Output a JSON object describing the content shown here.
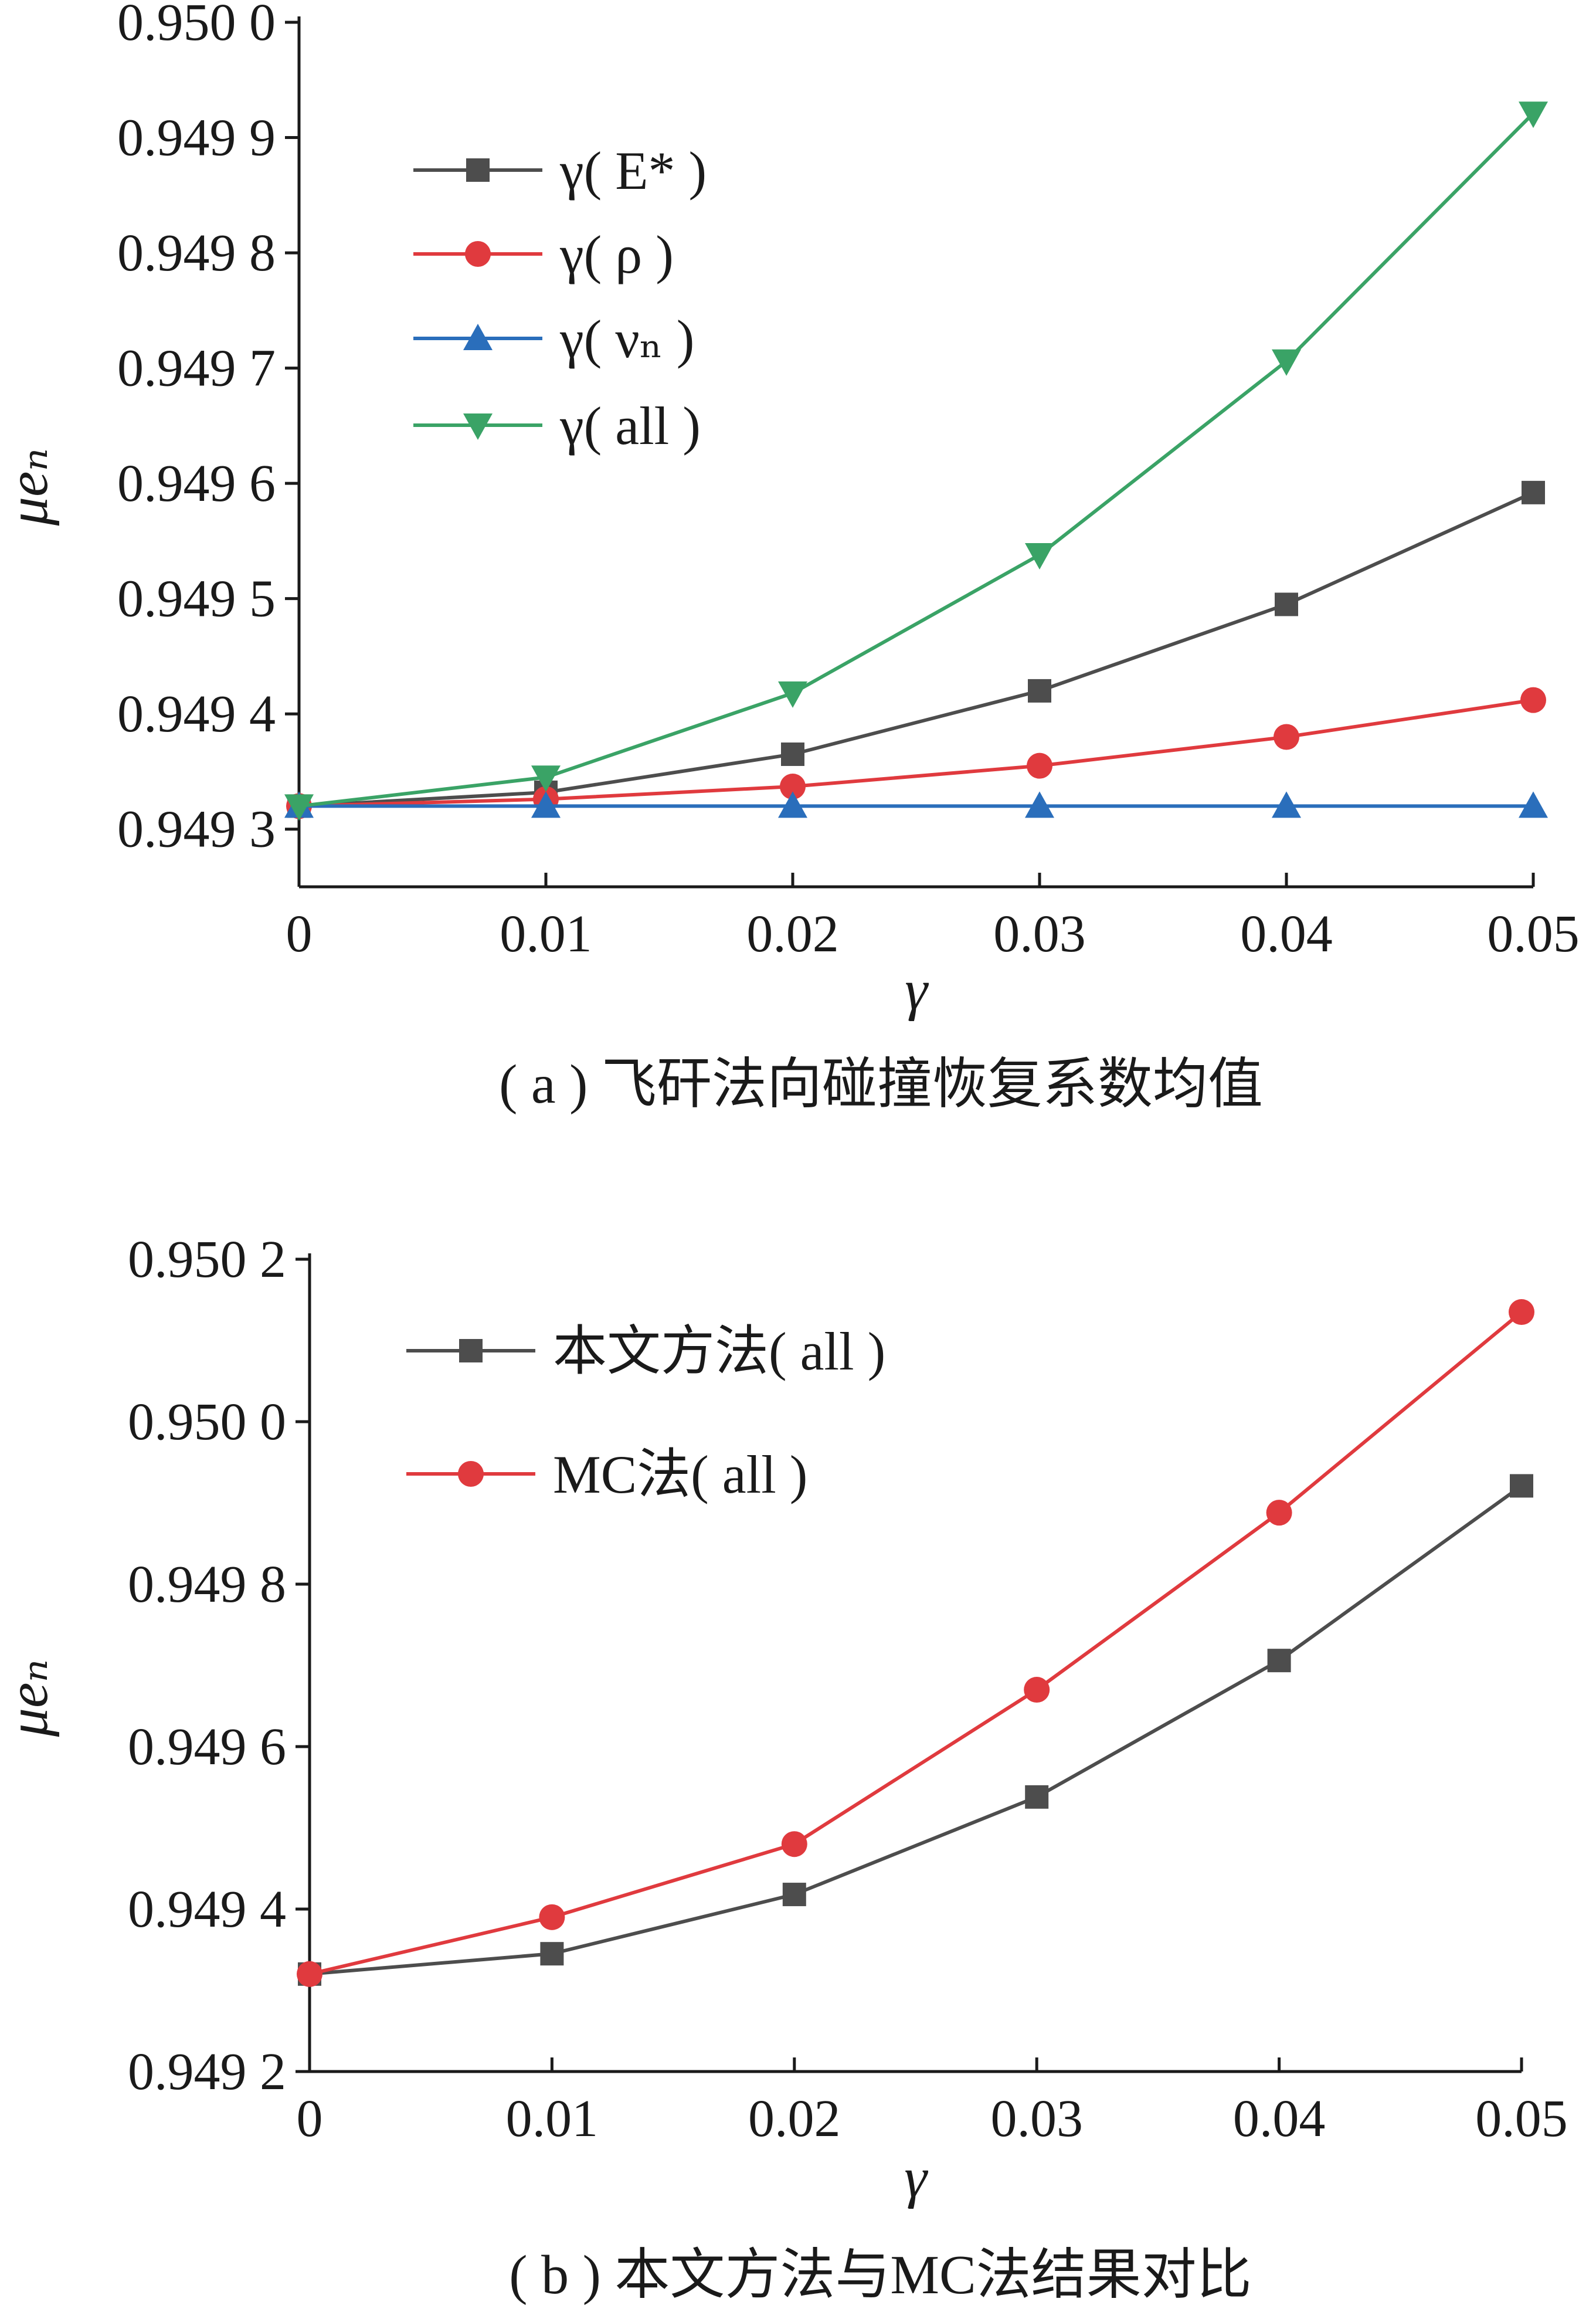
{
  "chart_data": [
    {
      "type": "line",
      "caption": "( a ) 飞矸法向碰撞恢复系数均值",
      "xlabel": "γ",
      "ylabel": "μeₙ",
      "xlim": [
        0,
        0.05
      ],
      "ylim": [
        0.94925,
        0.95
      ],
      "x": [
        0,
        0.01,
        0.02,
        0.03,
        0.04,
        0.05
      ],
      "x_tick_labels": [
        "0",
        "0.01",
        "0.02",
        "0.03",
        "0.04",
        "0.05"
      ],
      "y_ticks": [
        0.9493,
        0.9494,
        0.9495,
        0.9496,
        0.9497,
        0.9498,
        0.9499,
        0.95
      ],
      "y_tick_labels": [
        "0.949 3",
        "0.949 4",
        "0.949 5",
        "0.949 6",
        "0.949 7",
        "0.949 8",
        "0.949 9",
        "0.950 0"
      ],
      "legend_position": "top-left",
      "grid": false,
      "series": [
        {
          "name": "γ( E* )",
          "color": "#4d4d4d",
          "marker": "square",
          "values": [
            0.94932,
            0.949332,
            0.949365,
            0.94942,
            0.949495,
            0.949592
          ]
        },
        {
          "name": "γ( ρ )",
          "color": "#e03a3e",
          "marker": "circle",
          "values": [
            0.94932,
            0.949326,
            0.949337,
            0.949355,
            0.94938,
            0.949412
          ]
        },
        {
          "name": "γ( νₙ )",
          "color": "#2a6ebb",
          "marker": "triangle-up",
          "values": [
            0.94932,
            0.94932,
            0.94932,
            0.94932,
            0.94932,
            0.94932
          ]
        },
        {
          "name": "γ( all )",
          "color": "#3aa366",
          "marker": "triangle-down",
          "values": [
            0.94932,
            0.949345,
            0.949418,
            0.949538,
            0.949706,
            0.949921
          ]
        }
      ]
    },
    {
      "type": "line",
      "caption": "( b ) 本文方法与MC法结果对比",
      "xlabel": "γ",
      "ylabel": "μeₙ",
      "xlim": [
        0,
        0.05
      ],
      "ylim": [
        0.9492,
        0.9502
      ],
      "x": [
        0,
        0.01,
        0.02,
        0.03,
        0.04,
        0.05
      ],
      "x_tick_labels": [
        "0",
        "0.01",
        "0.02",
        "0.03",
        "0.04",
        "0.05"
      ],
      "y_ticks": [
        0.9492,
        0.9494,
        0.9496,
        0.9498,
        0.95,
        0.9502
      ],
      "y_tick_labels": [
        "0.949 2",
        "0.949 4",
        "0.949 6",
        "0.949 8",
        "0.950 0",
        "0.950 2"
      ],
      "legend_position": "top-left",
      "grid": false,
      "series": [
        {
          "name": "本文方法( all )",
          "color": "#4d4d4d",
          "marker": "square",
          "values": [
            0.94932,
            0.949345,
            0.949418,
            0.949538,
            0.949706,
            0.949921
          ]
        },
        {
          "name": "MC法( all )",
          "color": "#e03a3e",
          "marker": "circle",
          "values": [
            0.94932,
            0.94939,
            0.94948,
            0.94967,
            0.949888,
            0.950135
          ]
        }
      ]
    }
  ]
}
